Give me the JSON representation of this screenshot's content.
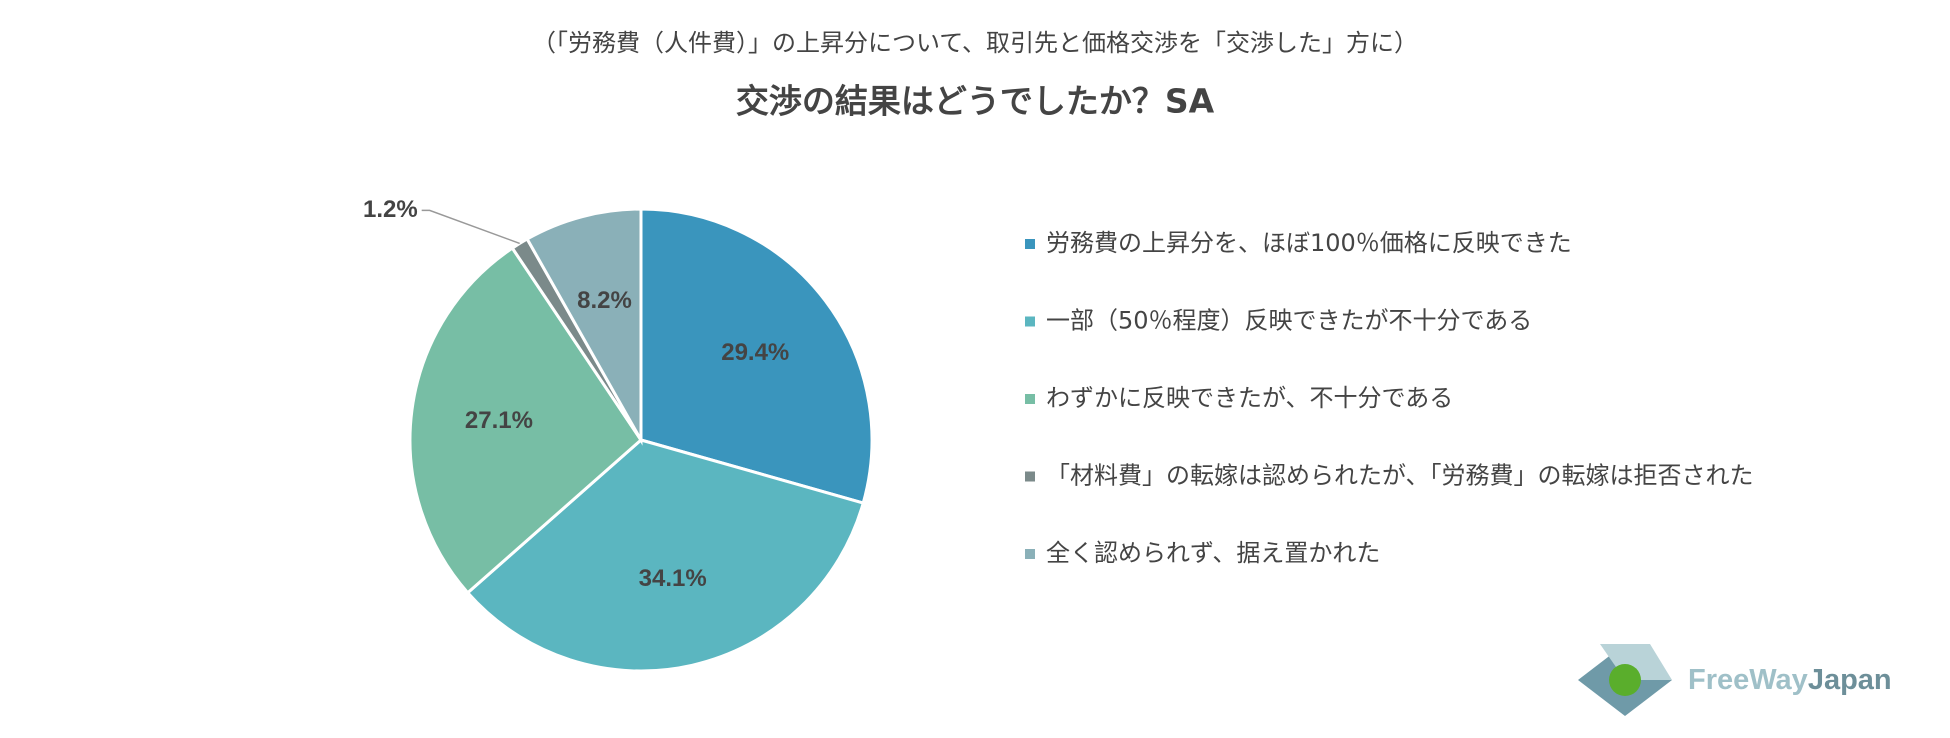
{
  "chart_data": {
    "type": "pie",
    "subtitle": "（「労務費（人件費）」の上昇分について、取引先と価格交渉を「交渉した」方に）",
    "title": "交渉の結果はどうでしたか？SA",
    "categories": [
      "労務費の上昇分を、ほぼ100％価格に反映できた",
      "一部（50％程度）反映できたが不十分である",
      "わずかに反映できたが、不十分である",
      "「材料費」の転嫁は認められたが、「労務費」の転嫁は拒否された",
      "全く認められず、据え置かれた"
    ],
    "values": [
      29.4,
      34.1,
      27.1,
      1.2,
      8.2
    ],
    "value_labels": [
      "29.4%",
      "34.1%",
      "27.1%",
      "1.2%",
      "8.2%"
    ],
    "colors": [
      "#3a95bd",
      "#5bb6c0",
      "#77bea5",
      "#7b8a8a",
      "#8ab0b8"
    ],
    "legend": "right",
    "logo": {
      "part1": "FreeWay",
      "part2": "Japan"
    }
  }
}
